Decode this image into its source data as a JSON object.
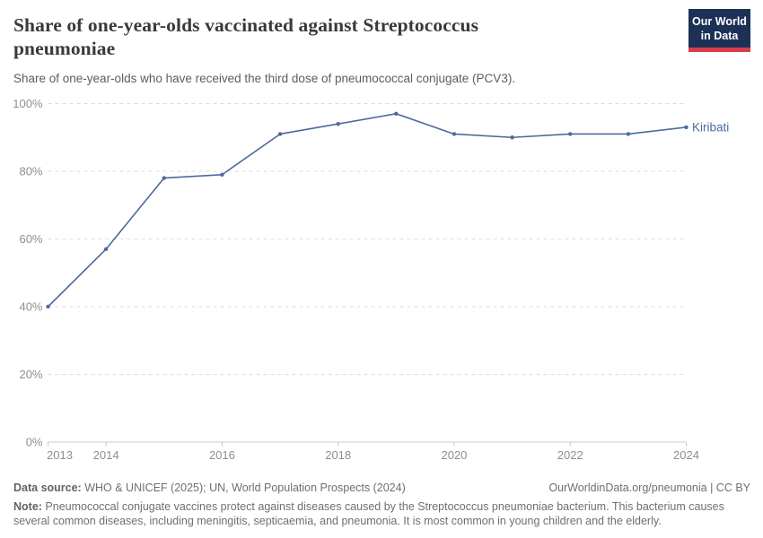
{
  "header": {
    "title": "Share of one-year-olds vaccinated against Streptococcus pneumoniae",
    "subtitle": "Share of one-year-olds who have received the third dose of pneumococcal conjugate (PCV3).",
    "logo": {
      "line1": "Our World",
      "line2": "in Data"
    }
  },
  "chart_data": {
    "type": "line",
    "title": "Share of one-year-olds vaccinated against Streptococcus pneumoniae",
    "x": [
      2013,
      2014,
      2015,
      2016,
      2017,
      2018,
      2019,
      2020,
      2021,
      2022,
      2023,
      2024
    ],
    "series": [
      {
        "name": "Kiribati",
        "values": [
          40,
          57,
          78,
          79,
          91,
          94,
          97,
          91,
          90,
          91,
          91,
          93
        ]
      }
    ],
    "ylim": [
      0,
      100
    ],
    "yticks": [
      0,
      20,
      40,
      60,
      80,
      100
    ],
    "ytick_suffix": "%",
    "xticks": [
      2013,
      2014,
      2016,
      2018,
      2020,
      2022,
      2024
    ],
    "grid": "horizontal-dashed",
    "legend_position": "end-of-line-label"
  },
  "colors": {
    "line": "#4c6a9c",
    "gridline": "#dddddd",
    "axis": "#cccccc",
    "tick_label": "#8e8e8e",
    "logo_bg": "#1d3156",
    "logo_accent": "#d93c4c"
  },
  "footer": {
    "datasource_label": "Data source:",
    "datasource_text": " WHO & UNICEF (2025); UN, World Population Prospects (2024)",
    "attribution": "OurWorldinData.org/pneumonia | CC BY",
    "note_label": "Note:",
    "note_text": " Pneumococcal conjugate vaccines protect against diseases caused by the Streptococcus pneumoniae bacterium. This bacterium causes several common diseases, including meningitis, septicaemia, and pneumonia. It is most common in young children and the elderly."
  }
}
